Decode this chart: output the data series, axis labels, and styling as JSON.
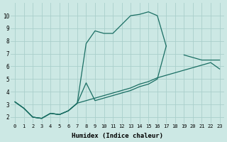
{
  "xlabel": "Humidex (Indice chaleur)",
  "ylabel": "",
  "background_color": "#cce8e4",
  "grid_color": "#aacfcb",
  "line_color": "#1a6e63",
  "xlim": [
    -0.5,
    23.5
  ],
  "ylim": [
    1.5,
    11.0
  ],
  "xticks": [
    0,
    1,
    2,
    3,
    4,
    5,
    6,
    7,
    8,
    9,
    10,
    11,
    12,
    13,
    14,
    15,
    16,
    17,
    18,
    19,
    20,
    21,
    22,
    23
  ],
  "yticks": [
    2,
    3,
    4,
    5,
    6,
    7,
    8,
    9,
    10
  ],
  "line1_x": [
    0,
    1,
    2,
    3,
    4,
    5,
    6,
    7,
    8,
    9,
    10,
    11,
    12,
    13,
    14,
    15,
    16,
    17,
    18,
    19,
    20,
    21,
    22
  ],
  "line1_y": [
    3.2,
    2.7,
    2.0,
    1.9,
    2.3,
    2.2,
    2.5,
    3.1,
    7.8,
    8.8,
    8.6,
    8.6,
    9.3,
    10.0,
    10.1,
    10.3,
    10.0,
    7.6,
    null,
    null,
    null,
    null,
    null
  ],
  "line2_x": [
    0,
    1,
    2,
    3,
    4,
    5,
    6,
    7,
    8,
    9,
    10,
    11,
    12,
    13,
    14,
    15,
    16,
    17,
    18,
    19,
    20,
    21,
    22,
    23
  ],
  "line2_y": [
    3.2,
    2.7,
    2.0,
    1.9,
    2.3,
    2.2,
    2.5,
    3.1,
    4.7,
    3.3,
    3.5,
    3.7,
    3.9,
    4.1,
    4.4,
    4.6,
    5.0,
    7.6,
    null,
    6.9,
    6.7,
    6.5,
    6.5,
    6.5
  ],
  "line3_x": [
    0,
    1,
    2,
    3,
    4,
    5,
    6,
    7,
    8,
    9,
    10,
    11,
    12,
    13,
    14,
    15,
    16,
    17,
    18,
    19,
    20,
    21,
    22,
    23
  ],
  "line3_y": [
    3.2,
    2.7,
    2.0,
    1.9,
    2.3,
    2.2,
    2.5,
    3.1,
    3.3,
    3.5,
    3.7,
    3.9,
    4.1,
    4.3,
    4.6,
    4.8,
    5.1,
    5.3,
    5.5,
    5.7,
    5.9,
    6.1,
    6.3,
    5.8
  ]
}
